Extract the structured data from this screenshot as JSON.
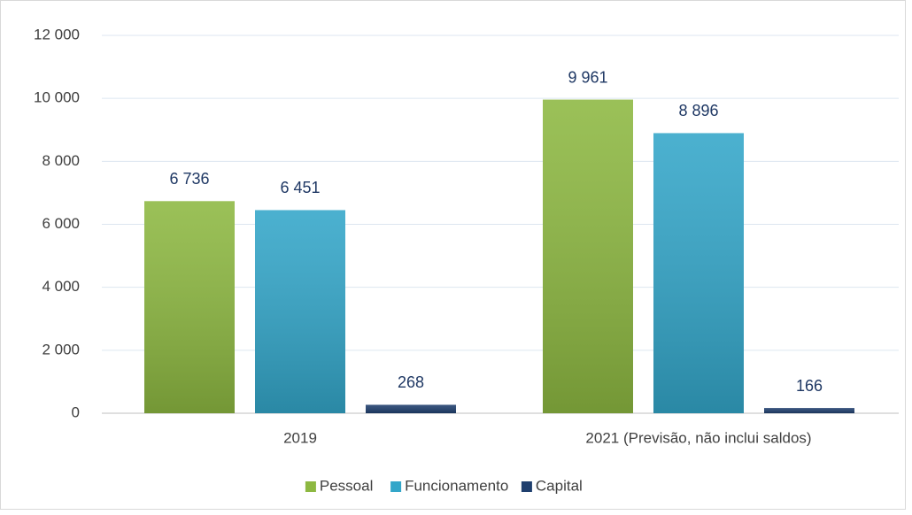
{
  "chart_data": {
    "type": "bar",
    "categories": [
      "2019",
      "2021 (Previsão, não inclui saldos)"
    ],
    "series": [
      {
        "name": "Pessoal",
        "color": "#8db841",
        "values": [
          6736,
          9961
        ],
        "value_labels": [
          "6 736",
          "9 961"
        ]
      },
      {
        "name": "Funcionamento",
        "color": "#33a6c9",
        "values": [
          6451,
          8896
        ],
        "value_labels": [
          "6 451",
          "8 896"
        ]
      },
      {
        "name": "Capital",
        "color": "#1f3f6e",
        "values": [
          268,
          166
        ],
        "value_labels": [
          "268",
          "166"
        ]
      }
    ],
    "ylim": [
      0,
      12000
    ],
    "yticks": [
      0,
      {
        "value": 2000,
        "label": "2 000"
      },
      {
        "value": 4000,
        "label": "4 000"
      },
      {
        "value": 6000,
        "label": "6 000"
      },
      {
        "value": 8000,
        "label": "8 000"
      },
      {
        "value": 10000,
        "label": "10 000"
      },
      {
        "value": 12000,
        "label": "12 000"
      }
    ],
    "grid": true,
    "legend": "bottom"
  }
}
